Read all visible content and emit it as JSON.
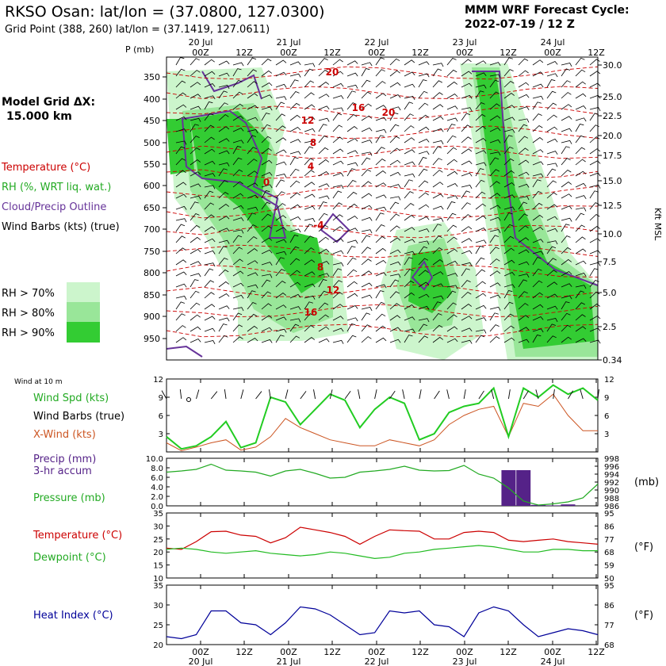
{
  "header": {
    "title": "RKSO Osan:  lat/lon = (37.0800, 127.0300)",
    "grid_point": "Grid Point (388, 260) lat/lon = (37.1419, 127.0611)",
    "cycle_label": "MMM WRF Forecast Cycle:",
    "cycle_value": "2022-07-19 / 12  Z"
  },
  "time_axis": {
    "hours": [
      "00Z",
      "12Z",
      "00Z",
      "12Z",
      "00Z",
      "12Z",
      "00Z",
      "12Z",
      "00Z",
      "12Z"
    ],
    "dates": [
      "20 Jul",
      "21 Jul",
      "22 Jul",
      "23 Jul",
      "24 Jul"
    ]
  },
  "legend": {
    "model_grid_1": "Model Grid ΔX:",
    "model_grid_2": "15.000 km",
    "temperature": "Temperature (°C)",
    "rh": "RH (%, WRT liq. wat.)",
    "cloud": "Cloud/Precip Outline",
    "barbs": "Wind Barbs (kts) (true)",
    "rh70": "RH > 70%",
    "rh80": "RH > 80%",
    "rh90": "RH > 90%",
    "wind10": "Wind at 10 m",
    "wspd": "Wind Spd (kts)",
    "wbarbs": "Wind Barbs (true)",
    "xwind": "X-Wind (kts)",
    "precip1": "Precip (mm)",
    "precip2": "3-hr accum",
    "pressure": "Pressure (mb)",
    "temp2": "Temperature (°C)",
    "dewp": "Dewpoint (°C)",
    "heat": "Heat Index (°C)",
    "mb": "(mb)",
    "degF": "(°F)",
    "p_mb": "P (mb)",
    "kft": "Kft MSL"
  },
  "colors": {
    "temperature": "#cc0000",
    "rh70": "#ccf5cc",
    "rh80": "#99e699",
    "rh90": "#33cc33",
    "cloud": "#663399",
    "wind": "#22cc22",
    "xwind": "#cc5522",
    "precip": "#552288",
    "pressure": "#22aa22",
    "dewpoint": "#22bb22",
    "heat": "#000099"
  },
  "chart_data": [
    {
      "type": "heatmap",
      "panel": "time-height cross section",
      "ylabel": "P (mb)",
      "pressure_ticks": [
        "350",
        "400",
        "450",
        "500",
        "550",
        "600",
        "650",
        "700",
        "750",
        "800",
        "850",
        "900",
        "950"
      ],
      "height_ticks": [
        "30.0",
        "25.0",
        "22.5",
        "20.0",
        "17.5",
        "15.0",
        "12.5",
        "10.0",
        "7.5",
        "5.0",
        "2.5",
        "0.34"
      ],
      "temperature_contour_labels": [
        "20",
        "16",
        "12",
        "8",
        "4",
        "0",
        "-4",
        "8",
        "12",
        "16",
        "20"
      ]
    },
    {
      "type": "line",
      "panel": "Wind at 10 m",
      "y_ticks_left": [
        "12",
        "9",
        "6",
        "3"
      ],
      "y_ticks_right": [
        "12",
        "9",
        "6",
        "3"
      ],
      "ylim": [
        0,
        12
      ],
      "series": [
        {
          "name": "Wind Spd (kts)",
          "color": "#22cc22",
          "values": [
            2.5,
            0.5,
            1.0,
            2.5,
            5.0,
            0.7,
            1.5,
            9.0,
            8.2,
            4.5,
            7.0,
            9.5,
            8.5,
            4.0,
            7.0,
            9.0,
            8.0,
            2.0,
            3.0,
            6.5,
            7.5,
            8.0,
            10.5,
            2.5,
            10.5,
            9.0,
            11.0,
            9.5,
            10.5,
            8.5
          ]
        },
        {
          "name": "X-Wind (kts)",
          "color": "#cc5522",
          "values": [
            1.5,
            0.2,
            0.8,
            1.5,
            2.0,
            0.3,
            0.8,
            2.5,
            5.5,
            4.0,
            3.0,
            2.0,
            1.5,
            1.0,
            1.0,
            2.0,
            1.5,
            1.0,
            2.0,
            4.5,
            6.0,
            7.0,
            7.5,
            2.5,
            8.0,
            7.5,
            9.5,
            6.0,
            3.5,
            3.5
          ]
        }
      ]
    },
    {
      "type": "bar",
      "panel": "Precip and Pressure",
      "y_ticks_left": [
        "10.0",
        "8.0",
        "6.0",
        "4.0",
        "2.0",
        "0.0"
      ],
      "y_ticks_right": [
        "998",
        "996",
        "994",
        "992",
        "990",
        "988",
        "986"
      ],
      "ylim": [
        0,
        10
      ],
      "pressure_lim": [
        986,
        998
      ],
      "series": [
        {
          "name": "Precip (mm)",
          "color": "#552288",
          "values": [
            0,
            0,
            0,
            0,
            0,
            0,
            0,
            0,
            0,
            0,
            0,
            0,
            0,
            0,
            0,
            0,
            0,
            0,
            0,
            0,
            0,
            0,
            0,
            7.5,
            7.5,
            0.2,
            0.1,
            0.3,
            0,
            0
          ]
        },
        {
          "name": "Pressure (mb)",
          "color": "#22aa22",
          "values": [
            994.5,
            994.8,
            995.2,
            996.5,
            995.0,
            994.8,
            994.5,
            993.5,
            994.8,
            995.2,
            994.2,
            993.0,
            993.2,
            994.5,
            994.8,
            995.2,
            996.0,
            995.0,
            994.8,
            994.9,
            996.2,
            994.0,
            993.0,
            990.5,
            987.2,
            986.2,
            986.5,
            987.0,
            988.0,
            991.5
          ]
        }
      ]
    },
    {
      "type": "line",
      "panel": "Temperature and Dewpoint",
      "y_ticks_left": [
        "35",
        "30",
        "25",
        "20",
        "15",
        "10"
      ],
      "y_ticks_right": [
        "95",
        "86",
        "77",
        "68",
        "59",
        "50"
      ],
      "ylim": [
        10,
        35
      ],
      "series": [
        {
          "name": "Temperature (°C)",
          "color": "#cc0000",
          "values": [
            21.5,
            21.0,
            24.0,
            27.8,
            28.0,
            26.5,
            26.0,
            23.5,
            25.5,
            29.5,
            28.5,
            27.5,
            26.0,
            23.0,
            26.0,
            28.5,
            28.2,
            28.0,
            25.0,
            25.0,
            27.5,
            28.0,
            27.5,
            24.5,
            24.0,
            24.5,
            25.0,
            24.0,
            23.5,
            23.0
          ]
        },
        {
          "name": "Dewpoint (°C)",
          "color": "#22bb22",
          "values": [
            21.0,
            21.5,
            21.0,
            20.0,
            19.5,
            20.0,
            20.5,
            19.5,
            19.0,
            18.5,
            19.0,
            20.0,
            19.5,
            18.5,
            17.5,
            18.0,
            19.5,
            20.0,
            21.0,
            21.5,
            22.0,
            22.5,
            22.0,
            21.0,
            20.0,
            20.0,
            21.0,
            21.0,
            20.5,
            20.5
          ]
        }
      ]
    },
    {
      "type": "line",
      "panel": "Heat Index",
      "y_ticks_left": [
        "35",
        "30",
        "25",
        "20"
      ],
      "y_ticks_right": [
        "95",
        "86",
        "77",
        "68"
      ],
      "ylim": [
        20,
        35
      ],
      "series": [
        {
          "name": "Heat Index (°C)",
          "color": "#000099",
          "values": [
            22.0,
            21.5,
            22.5,
            28.5,
            28.5,
            25.5,
            25.0,
            22.5,
            25.5,
            29.5,
            29.0,
            27.5,
            25.0,
            22.5,
            23.0,
            28.5,
            28.0,
            28.5,
            25.0,
            24.5,
            22.0,
            28.0,
            29.5,
            28.5,
            25.0,
            22.0,
            23.0,
            24.0,
            23.5,
            22.5
          ]
        }
      ]
    }
  ]
}
